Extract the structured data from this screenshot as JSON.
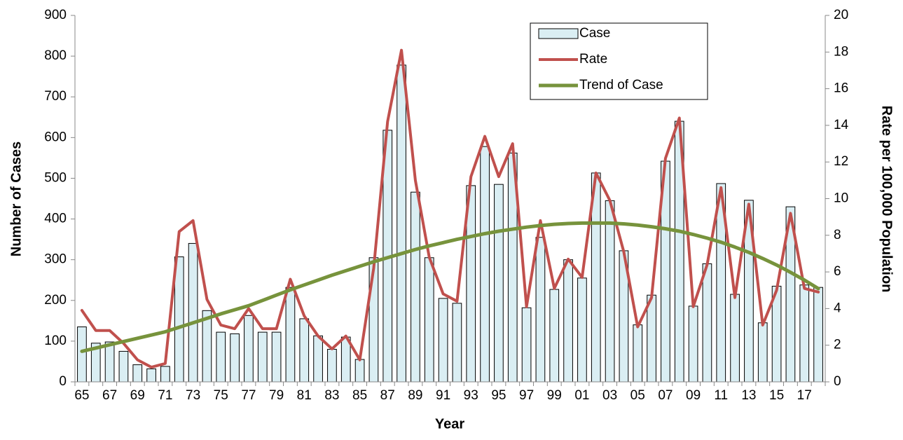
{
  "chart_data": {
    "type": "combo",
    "x_label": "Year",
    "y_label": "Number of Cases",
    "y2_label": "Rate per 100,000 Population",
    "categories": [
      "65",
      null,
      "67",
      null,
      "69",
      null,
      "71",
      null,
      "73",
      null,
      "75",
      null,
      "77",
      null,
      "79",
      null,
      "81",
      null,
      "83",
      null,
      "85",
      null,
      "87",
      null,
      "89",
      null,
      "91",
      null,
      "93",
      null,
      "95",
      null,
      "97",
      null,
      "99",
      null,
      "01",
      null,
      "03",
      null,
      "05",
      null,
      "07",
      null,
      "09",
      null,
      "11",
      null,
      "13",
      null,
      "15",
      null,
      "17",
      null
    ],
    "series": [
      {
        "name": "Case",
        "type": "bar",
        "color": "#daeef3",
        "values": [
          135,
          95,
          98,
          75,
          42,
          32,
          38,
          307,
          340,
          175,
          122,
          118,
          163,
          122,
          122,
          232,
          155,
          113,
          80,
          110,
          55,
          305,
          618,
          778,
          466,
          305,
          205,
          193,
          482,
          578,
          485,
          562,
          182,
          355,
          227,
          300,
          255,
          513,
          445,
          322,
          140,
          213,
          542,
          640,
          186,
          290,
          487,
          215,
          446,
          145,
          235,
          430,
          238,
          232
        ]
      },
      {
        "name": "Rate",
        "type": "line",
        "axis": "y2",
        "color": "#c0504d",
        "values": [
          3.9,
          2.8,
          2.8,
          2.1,
          1.2,
          0.8,
          1.0,
          8.2,
          8.8,
          4.5,
          3.1,
          2.9,
          4.0,
          2.9,
          2.9,
          5.6,
          3.6,
          2.5,
          1.8,
          2.5,
          1.2,
          6.2,
          14.2,
          18.1,
          11.0,
          6.8,
          4.8,
          4.4,
          11.2,
          13.4,
          11.2,
          13.0,
          4.1,
          8.8,
          5.1,
          6.7,
          5.7,
          11.4,
          9.9,
          7.1,
          3.0,
          4.6,
          12.2,
          14.4,
          4.1,
          6.4,
          10.6,
          4.6,
          9.7,
          3.1,
          5.0,
          9.2,
          5.1,
          4.9
        ]
      },
      {
        "name": "Trend of Case",
        "type": "line",
        "color": "#77933c",
        "values": [
          75,
          83,
          91,
          99,
          107,
          115,
          123,
          134,
          145,
          156,
          167,
          177,
          187,
          200,
          213,
          226,
          238,
          250,
          262,
          273,
          284,
          295,
          305,
          315,
          325,
          334,
          342,
          350,
          357,
          364,
          370,
          375,
          380,
          384,
          387,
          389,
          390,
          390,
          390,
          388,
          385,
          381,
          376,
          370,
          362,
          353,
          343,
          331,
          318,
          303,
          287,
          269,
          250,
          229
        ]
      }
    ],
    "ylim": [
      0,
      900
    ],
    "yticks": [
      0,
      100,
      200,
      300,
      400,
      500,
      600,
      700,
      800,
      900
    ],
    "y2lim": [
      0,
      20
    ],
    "y2ticks": [
      0,
      2,
      4,
      6,
      8,
      10,
      12,
      14,
      16,
      18,
      20
    ],
    "legend": "top-right"
  }
}
